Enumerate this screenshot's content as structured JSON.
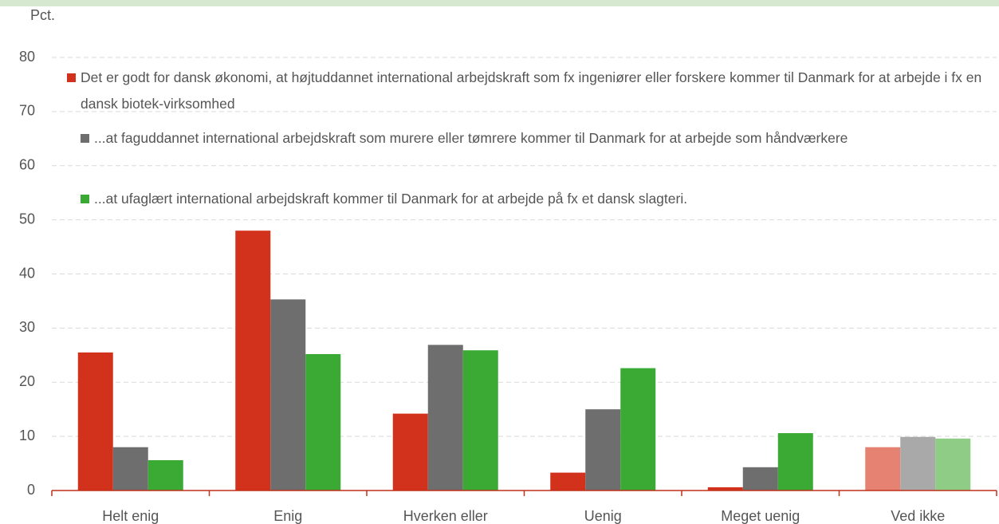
{
  "chart_data": {
    "type": "bar",
    "y_axis_label": "Pct.",
    "categories": [
      "Helt enig",
      "Enig",
      "Hverken eller",
      "Uenig",
      "Meget uenig",
      "Ved ikke"
    ],
    "series": [
      {
        "name": "Det er godt for dansk økonomi, at højtuddannet international arbejdskraft som fx ingeniører eller forskere kommer til Danmark for at arbejde i fx en dansk biotek-virksomhed",
        "color": "#d2321c",
        "colors": [
          "#d2321c",
          "#d2321c",
          "#d2321c",
          "#d2321c",
          "#d2321c",
          "#e58272"
        ],
        "values": [
          25.5,
          48,
          14.2,
          3.3,
          0.6,
          8
        ]
      },
      {
        "name": "...at faguddannet international arbejdskraft som murere eller tømrere kommer til Danmark for at arbejde som håndværkere",
        "color": "#6e6e6e",
        "colors": [
          "#6e6e6e",
          "#6e6e6e",
          "#6e6e6e",
          "#6e6e6e",
          "#6e6e6e",
          "#a9a9a9"
        ],
        "values": [
          8,
          35.3,
          26.9,
          15,
          4.3,
          9.9
        ]
      },
      {
        "name": "...at ufaglært international arbejdskraft kommer til Danmark for at arbejde på fx et dansk slagteri.",
        "color": "#3aaa35",
        "colors": [
          "#3aaa35",
          "#3aaa35",
          "#3aaa35",
          "#3aaa35",
          "#3aaa35",
          "#8fcc85"
        ],
        "values": [
          5.6,
          25.2,
          25.9,
          22.6,
          10.6,
          9.6
        ]
      }
    ],
    "ylim": [
      0,
      80
    ],
    "yticks": [
      0,
      10,
      20,
      30,
      40,
      50,
      60,
      70,
      80
    ],
    "grid": true
  }
}
